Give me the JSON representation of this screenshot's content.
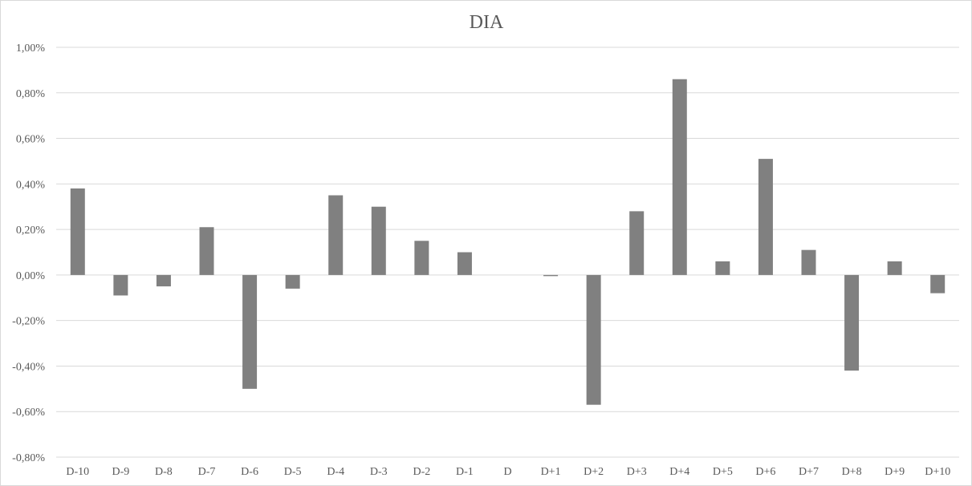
{
  "chart_data": {
    "type": "bar",
    "title": "DIA",
    "xlabel": "",
    "ylabel": "",
    "categories": [
      "D-10",
      "D-9",
      "D-8",
      "D-7",
      "D-6",
      "D-5",
      "D-4",
      "D-3",
      "D-2",
      "D-1",
      "D",
      "D+1",
      "D+2",
      "D+3",
      "D+4",
      "D+5",
      "D+6",
      "D+7",
      "D+8",
      "D+9",
      "D+10"
    ],
    "values": [
      0.38,
      -0.09,
      -0.05,
      0.21,
      -0.5,
      -0.06,
      0.35,
      0.3,
      0.15,
      0.1,
      0.0,
      -0.005,
      -0.57,
      0.28,
      0.86,
      0.06,
      0.51,
      0.11,
      -0.42,
      0.06,
      -0.08
    ],
    "unit": "%",
    "ylim": [
      -0.8,
      1.0
    ],
    "yticks": [
      "1,00%",
      "0,80%",
      "0,60%",
      "0,40%",
      "0,20%",
      "0,00%",
      "-0,20%",
      "-0,40%",
      "-0,60%",
      "-0,80%"
    ],
    "ytick_values": [
      1.0,
      0.8,
      0.6,
      0.4,
      0.2,
      0.0,
      -0.2,
      -0.4,
      -0.6,
      -0.8
    ],
    "grid": true,
    "legend": "none",
    "bar_color": "#808080",
    "grid_color": "#d9d9d9"
  }
}
